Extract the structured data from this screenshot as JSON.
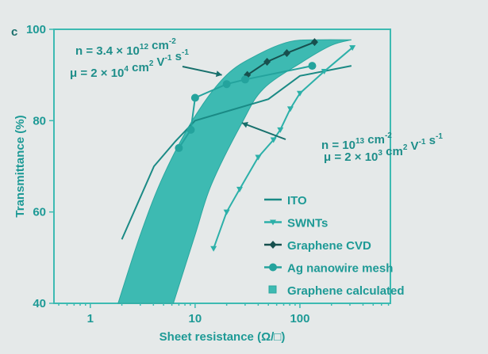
{
  "chart_data": {
    "type": "line",
    "panel_label": "c",
    "xlabel": "Sheet resistance (Ω/□)",
    "ylabel": "Transmittance (%)",
    "xscale": "log",
    "xlim": [
      0.45,
      730
    ],
    "ylim": [
      40,
      100
    ],
    "xticks": [
      {
        "value": 1,
        "label": "1"
      },
      {
        "value": 10,
        "label": "10"
      },
      {
        "value": 100,
        "label": "100"
      }
    ],
    "yticks": [
      {
        "value": 40,
        "label": "40"
      },
      {
        "value": 60,
        "label": "60"
      },
      {
        "value": 80,
        "label": "80"
      },
      {
        "value": 100,
        "label": "100"
      }
    ],
    "grid": false,
    "legend_position": "bottom-right",
    "colors": {
      "fill": "#3dbab2",
      "ito": "#1a8a85",
      "swnt": "#2cb0a9",
      "cvd": "#17504e",
      "ag": "#24a39d",
      "axis": "#3dbab2",
      "text": "#1e9a96"
    },
    "series": [
      {
        "name": "ITO",
        "marker": "none",
        "points": [
          [
            2.0,
            54
          ],
          [
            4.05,
            70
          ],
          [
            6.5,
            75.5
          ],
          [
            10,
            80
          ],
          [
            50,
            84.7
          ],
          [
            100,
            89.8
          ],
          [
            310,
            92
          ]
        ]
      },
      {
        "name": "SWNTs",
        "marker": "triangle-down",
        "points": [
          [
            15,
            52
          ],
          [
            20,
            60
          ],
          [
            26.6,
            65
          ],
          [
            40,
            72
          ],
          [
            56,
            75.8
          ],
          [
            65,
            78
          ],
          [
            81,
            82.6
          ],
          [
            100,
            86
          ],
          [
            171,
            90.8
          ],
          [
            317,
            96
          ]
        ]
      },
      {
        "name": "Graphene CVD",
        "marker": "diamond",
        "points": [
          [
            31.5,
            90
          ],
          [
            48.6,
            92.9
          ],
          [
            75,
            94.8
          ],
          [
            138,
            97.2
          ]
        ]
      },
      {
        "name": "Ag nanowire mesh",
        "marker": "circle",
        "points": [
          [
            7,
            74
          ],
          [
            9.1,
            78
          ],
          [
            10,
            85
          ],
          [
            20,
            88
          ],
          [
            30,
            89
          ],
          [
            131,
            92
          ]
        ]
      }
    ],
    "band": {
      "name": "Graphene calculated",
      "upper": [
        [
          1.84,
          40
        ],
        [
          3,
          55
        ],
        [
          5,
          68
        ],
        [
          10,
          81
        ],
        [
          20,
          90
        ],
        [
          40,
          94.5
        ],
        [
          80,
          97.3
        ],
        [
          150,
          97.7
        ],
        [
          310,
          97.7
        ]
      ],
      "lower": [
        [
          6.2,
          40
        ],
        [
          10,
          55
        ],
        [
          14.3,
          66
        ],
        [
          28,
          79.5
        ],
        [
          45,
          87
        ],
        [
          108,
          93
        ],
        [
          200,
          96.5
        ],
        [
          310,
          97.7
        ]
      ]
    },
    "annotations": [
      {
        "line1": "n = 3.4 × 10",
        "sup1": "12",
        "unit1": " cm",
        "unitsup1": "-2",
        "line2": "μ = 2 × 10",
        "sup2": "4",
        "unit2": " cm",
        "unitsup2": "2",
        "unit2b": " V",
        "unitsup2b": "-1",
        "unit2c": " s",
        "unitsup2c": "-1",
        "arrow_to": [
          18,
          90
        ]
      },
      {
        "line1": "n = 10",
        "sup1": "13",
        "unit1": " cm",
        "unitsup1": "-2",
        "line2": "μ = 2 × 10",
        "sup2": "3",
        "unit2": " cm",
        "unitsup2": "2",
        "unit2b": " V",
        "unitsup2b": "-1",
        "unit2c": " s",
        "unitsup2c": "-1",
        "arrow_to": [
          28,
          79.5
        ]
      }
    ]
  }
}
